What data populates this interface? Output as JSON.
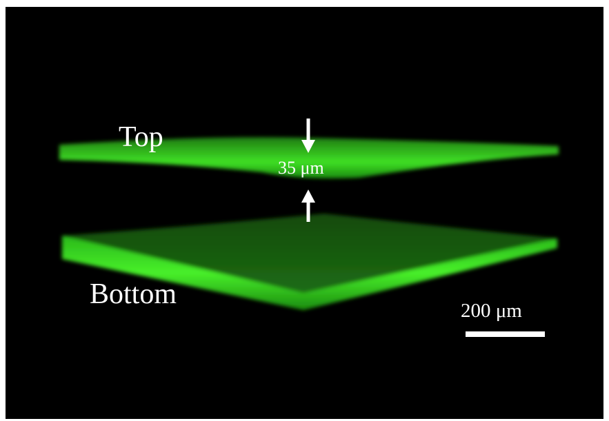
{
  "labels": {
    "top": "Top",
    "gap": "35 μm",
    "bottom": "Bottom",
    "scale": "200 μm"
  }
}
